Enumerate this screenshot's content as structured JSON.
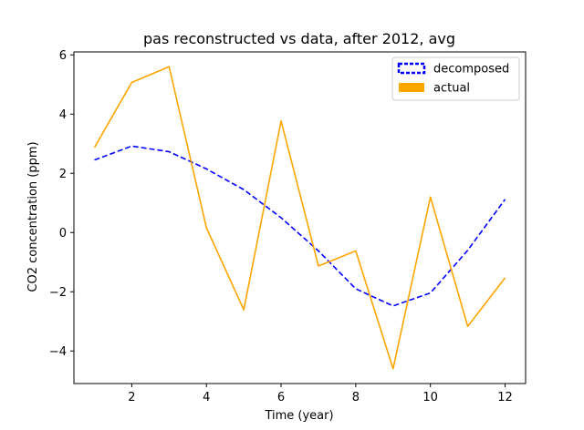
{
  "chart_data": {
    "type": "line",
    "title": "pas reconstructed vs data, after 2012, avg",
    "xlabel": "Time (year)",
    "ylabel": "CO2 concentration (ppm)",
    "xlim": [
      0.45,
      12.55
    ],
    "ylim": [
      -5.1,
      6.1
    ],
    "xticks": [
      2,
      4,
      6,
      8,
      10,
      12
    ],
    "yticks": [
      -4,
      -2,
      0,
      2,
      4,
      6
    ],
    "grid": false,
    "legend_position": "top-right",
    "x": [
      1,
      2,
      3,
      4,
      5,
      6,
      7,
      8,
      9,
      10,
      11,
      12
    ],
    "series": [
      {
        "name": "decomposed",
        "color": "#0000ff",
        "style": "dashed",
        "values": [
          2.45,
          2.92,
          2.73,
          2.15,
          1.45,
          0.5,
          -0.62,
          -1.9,
          -2.48,
          -2.04,
          -0.6,
          1.12
        ]
      },
      {
        "name": "actual",
        "color": "#ffa500",
        "style": "solid",
        "values": [
          2.87,
          5.07,
          5.6,
          0.16,
          -2.61,
          3.77,
          -1.13,
          -0.62,
          -4.6,
          1.2,
          -3.17,
          -1.53
        ]
      }
    ]
  }
}
